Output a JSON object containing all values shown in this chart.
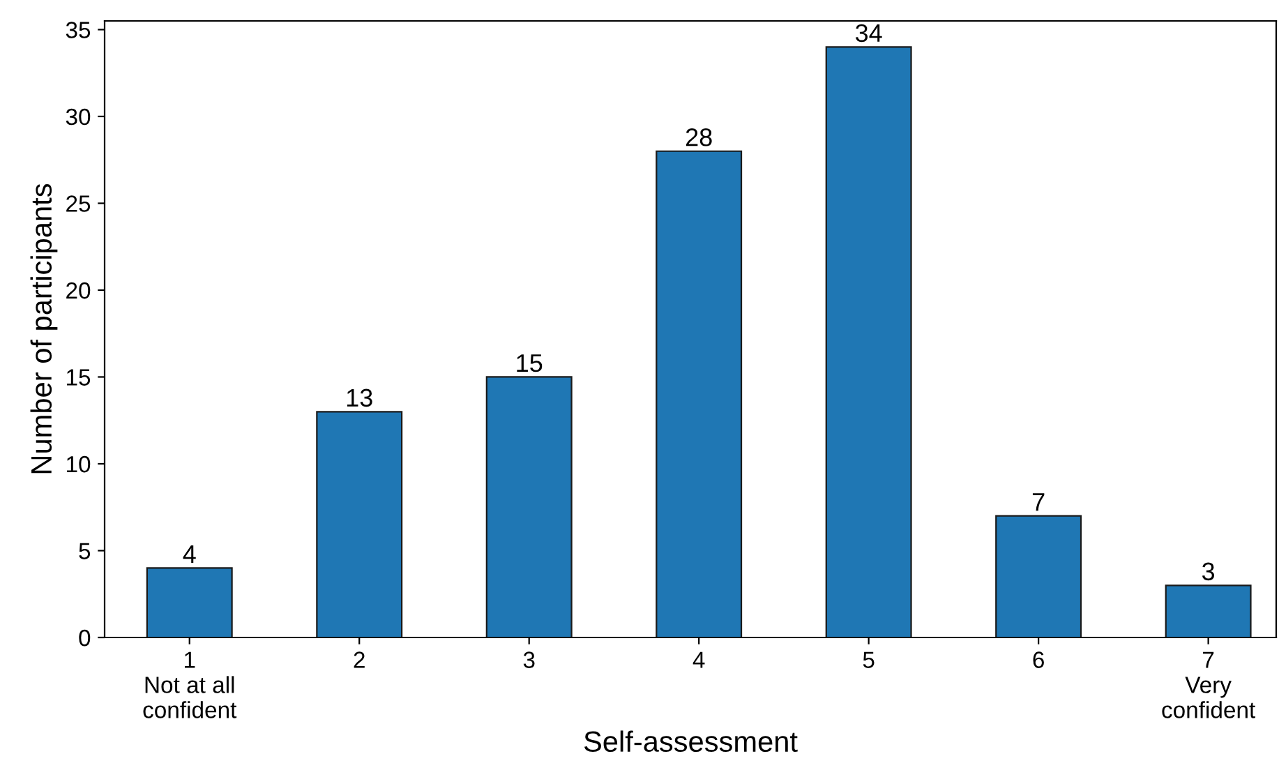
{
  "chart_data": {
    "type": "bar",
    "xlabel": "Self-assessment",
    "ylabel": "Number of participants",
    "categories": [
      "1\nNot at all\nconfident",
      "2",
      "3",
      "4",
      "5",
      "6",
      "7\nVery\nconfident"
    ],
    "values": [
      4,
      13,
      15,
      28,
      34,
      7,
      3
    ],
    "color": "#1f77b4",
    "ylim": [
      0,
      35.5
    ],
    "yticks": [
      0,
      5,
      10,
      15,
      20,
      25,
      30,
      35
    ],
    "data_labels": true,
    "grid": false,
    "legend": false
  }
}
